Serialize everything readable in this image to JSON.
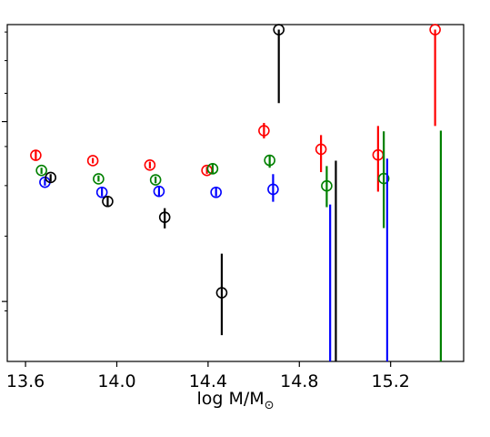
{
  "chart_data": {
    "type": "scatter",
    "xlabel": "log M/M",
    "xlabel_subscript": "⊙",
    "ylabel": "",
    "title": "",
    "xlim": [
      13.52,
      15.52
    ],
    "ylim": [
      0,
      1
    ],
    "y_scale": "log",
    "grid": false,
    "legend": "none",
    "x_ticks": [
      {
        "value": 13.6,
        "label": "13.6"
      },
      {
        "value": 14.0,
        "label": "14.0"
      },
      {
        "value": 14.4,
        "label": "14.4"
      },
      {
        "value": 14.8,
        "label": "14.8"
      },
      {
        "value": 15.2,
        "label": "15.2"
      }
    ],
    "y_major_ticks": [
      0.178,
      0.712
    ],
    "y_minor_ticks": [
      0.15,
      0.372,
      0.522,
      0.638,
      0.796,
      0.893,
      0.978
    ],
    "series": [
      {
        "color": "#ff0000",
        "points": [
          {
            "x": 13.645,
            "y": 0.612,
            "lo": 0.598,
            "hi": 0.626
          },
          {
            "x": 13.895,
            "y": 0.596,
            "lo": 0.588,
            "hi": 0.604
          },
          {
            "x": 14.145,
            "y": 0.583,
            "lo": 0.573,
            "hi": 0.593
          },
          {
            "x": 14.395,
            "y": 0.567,
            "lo": 0.557,
            "hi": 0.578
          },
          {
            "x": 14.645,
            "y": 0.685,
            "lo": 0.662,
            "hi": 0.708
          },
          {
            "x": 14.895,
            "y": 0.63,
            "lo": 0.562,
            "hi": 0.672
          },
          {
            "x": 15.145,
            "y": 0.613,
            "lo": 0.504,
            "hi": 0.699
          },
          {
            "x": 15.395,
            "y": 0.985,
            "lo": 0.699,
            "hi": 0.985
          }
        ]
      },
      {
        "color": "#008000",
        "points": [
          {
            "x": 13.67,
            "y": 0.567,
            "lo": 0.557,
            "hi": 0.575
          },
          {
            "x": 13.92,
            "y": 0.542,
            "lo": 0.534,
            "hi": 0.552
          },
          {
            "x": 14.17,
            "y": 0.539,
            "lo": 0.529,
            "hi": 0.549
          },
          {
            "x": 14.42,
            "y": 0.572,
            "lo": 0.558,
            "hi": 0.586
          },
          {
            "x": 14.67,
            "y": 0.597,
            "lo": 0.575,
            "hi": 0.613
          },
          {
            "x": 14.92,
            "y": 0.521,
            "lo": 0.458,
            "hi": 0.58
          },
          {
            "x": 15.17,
            "y": 0.543,
            "lo": 0.396,
            "hi": 0.683
          },
          {
            "x": 15.42,
            "y": 0.0,
            "lo": 0.0,
            "hi": 0.685
          }
        ]
      },
      {
        "color": "#0000ff",
        "points": [
          {
            "x": 13.685,
            "y": 0.532,
            "lo": 0.522,
            "hi": 0.542
          },
          {
            "x": 13.935,
            "y": 0.502,
            "lo": 0.49,
            "hi": 0.516
          },
          {
            "x": 14.185,
            "y": 0.505,
            "lo": 0.49,
            "hi": 0.52
          },
          {
            "x": 14.435,
            "y": 0.502,
            "lo": 0.49,
            "hi": 0.516
          },
          {
            "x": 14.685,
            "y": 0.511,
            "lo": 0.474,
            "hi": 0.556
          },
          {
            "x": 14.935,
            "y": 0.0,
            "lo": 0.0,
            "hi": 0.466
          },
          {
            "x": 15.185,
            "y": 0.0,
            "lo": 0.0,
            "hi": 0.602
          }
        ]
      },
      {
        "color": "#000000",
        "points": [
          {
            "x": 13.71,
            "y": 0.546,
            "lo": 0.534,
            "hi": 0.556
          },
          {
            "x": 13.96,
            "y": 0.475,
            "lo": 0.459,
            "hi": 0.49
          },
          {
            "x": 14.21,
            "y": 0.428,
            "lo": 0.395,
            "hi": 0.455
          },
          {
            "x": 14.46,
            "y": 0.204,
            "lo": 0.078,
            "hi": 0.32
          },
          {
            "x": 14.71,
            "y": 0.985,
            "lo": 0.767,
            "hi": 0.985
          },
          {
            "x": 14.96,
            "y": 0.0,
            "lo": 0.0,
            "hi": 0.596
          }
        ]
      }
    ]
  }
}
